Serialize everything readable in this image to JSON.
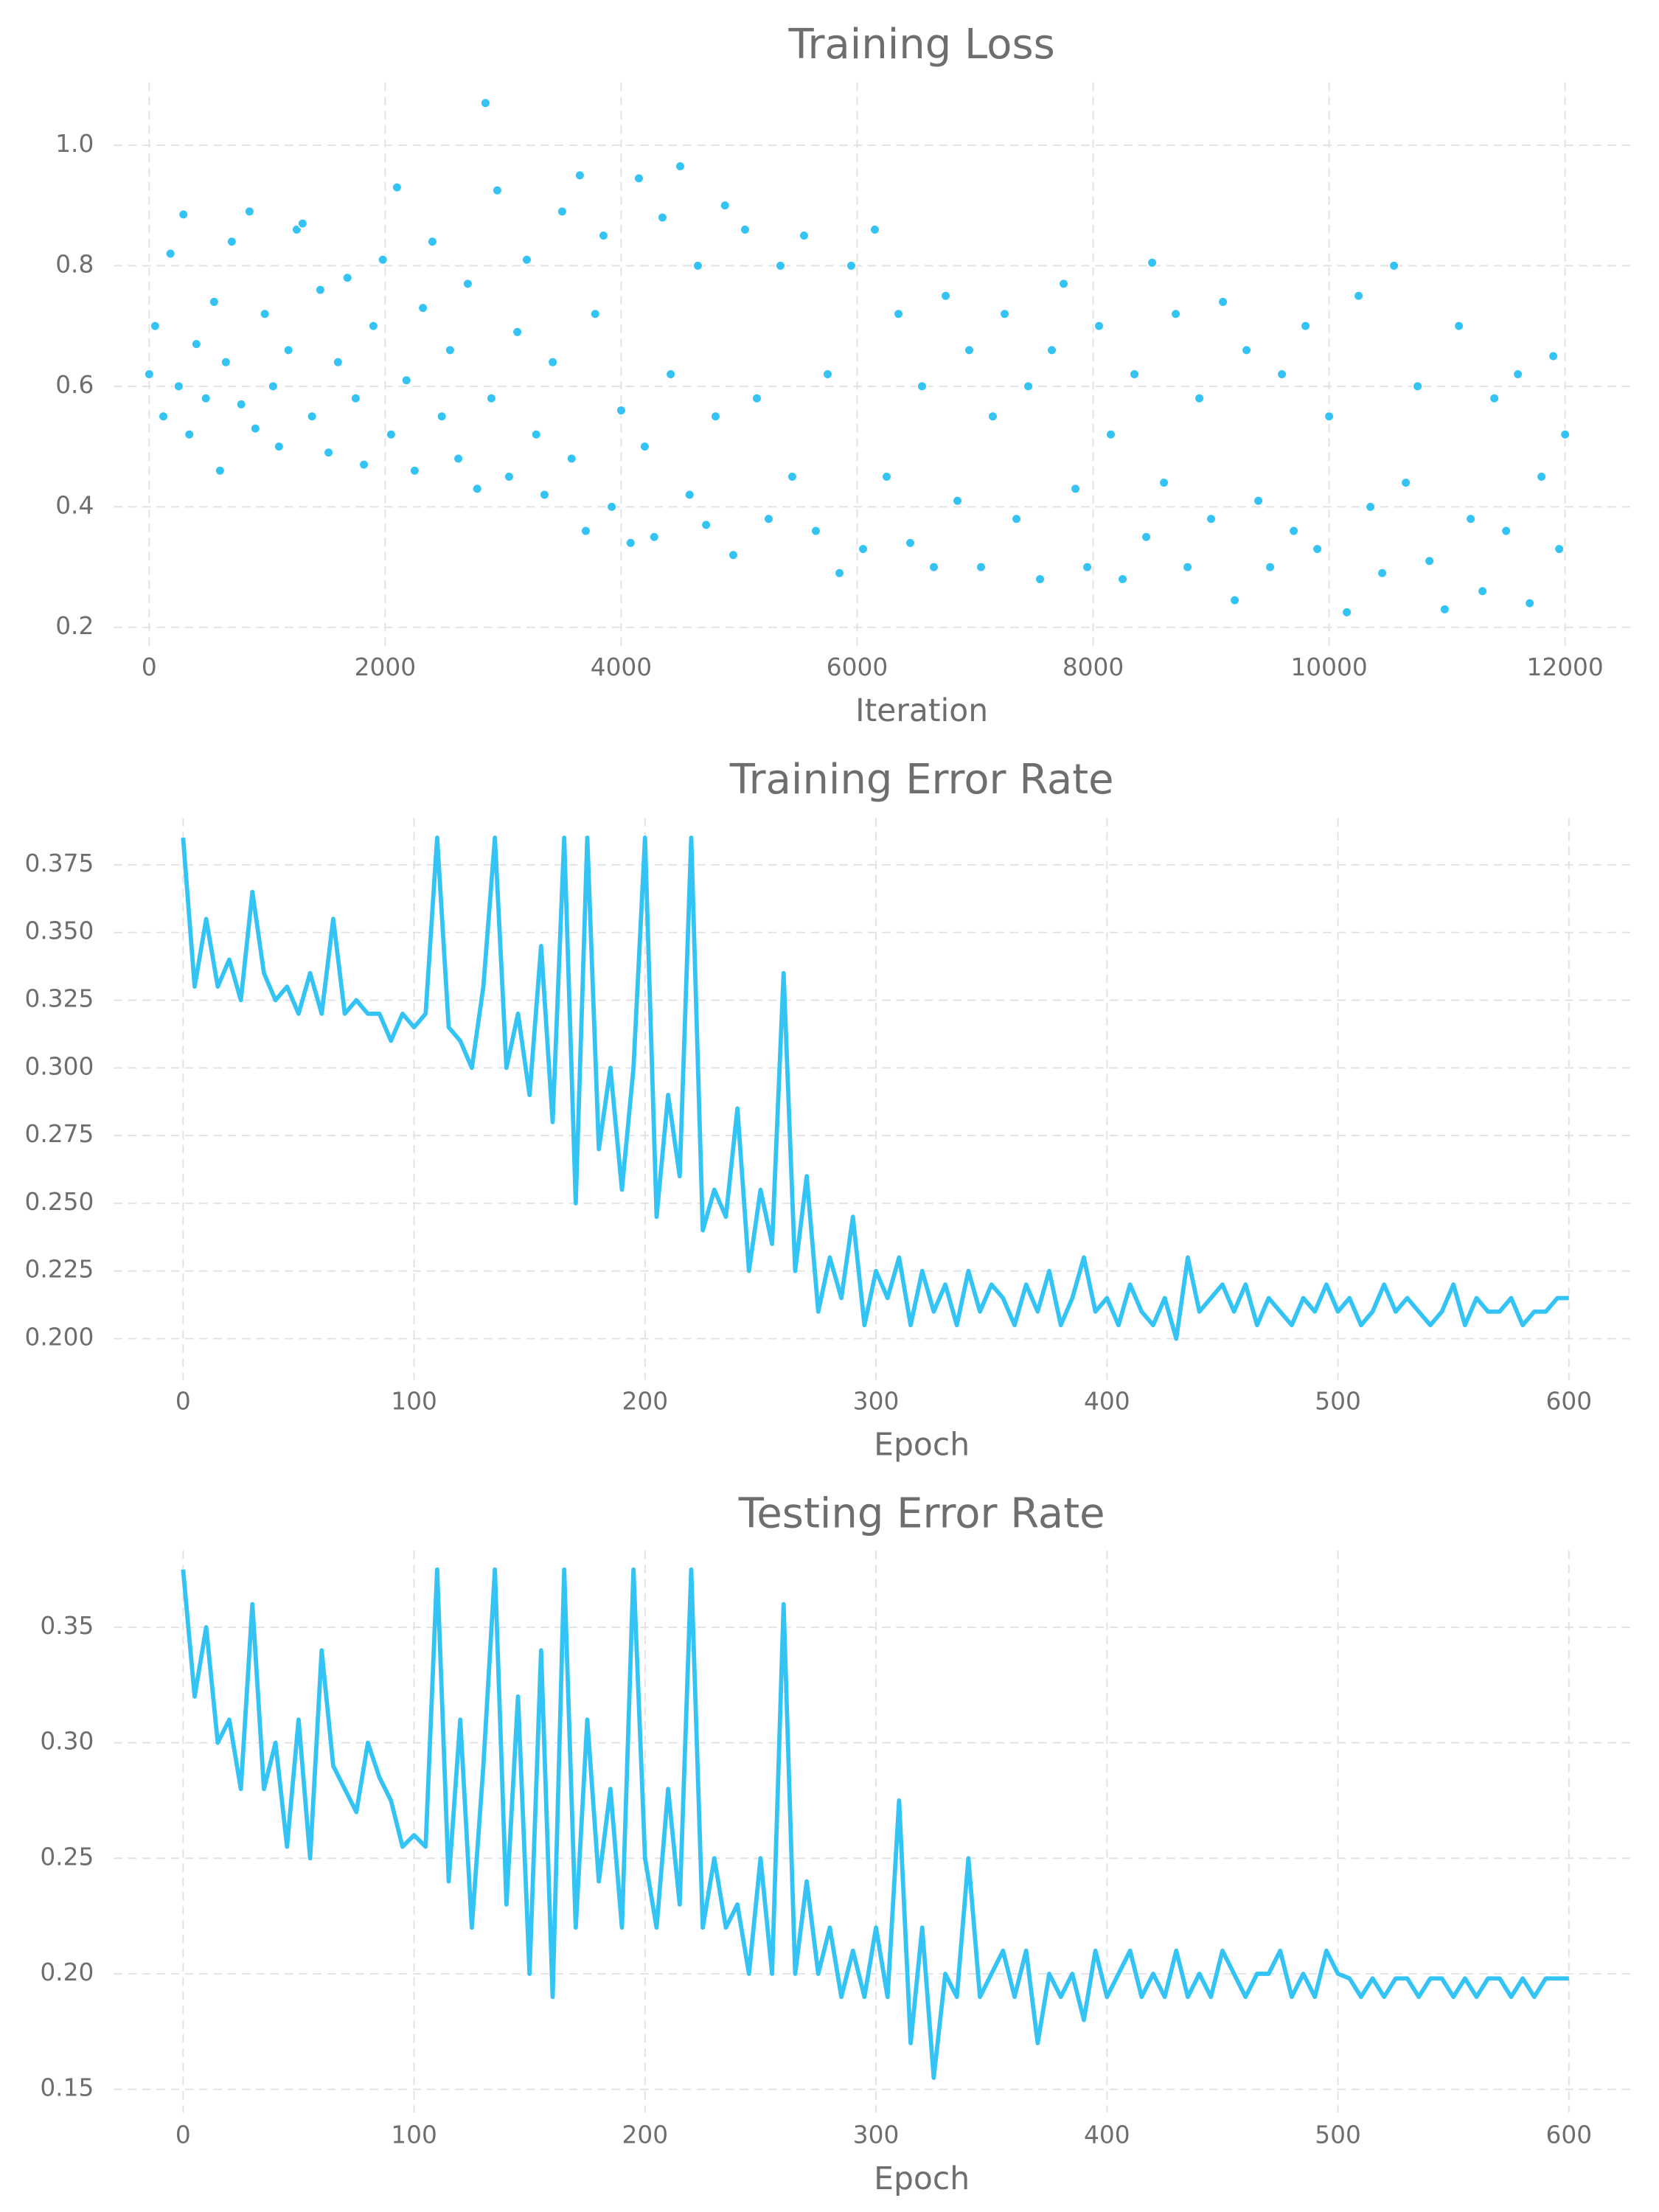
{
  "chart_data": [
    {
      "type": "scatter",
      "title": "Training Loss",
      "x_label": "Iteration",
      "color": "#33c4f5",
      "grid": true,
      "xlim": [
        -300,
        12600
      ],
      "ylim": [
        0.167,
        1.104
      ],
      "xticks": [
        0,
        2000,
        4000,
        6000,
        8000,
        10000,
        12000
      ],
      "yticks": [
        0.2,
        0.4,
        0.6,
        0.8,
        {
          "value": 1,
          "label": "1.0"
        }
      ],
      "x": [
        0,
        50,
        120,
        180,
        250,
        290,
        340,
        400,
        480,
        550,
        600,
        650,
        700,
        780,
        850,
        900,
        980,
        1050,
        1100,
        1180,
        1250,
        1300,
        1380,
        1450,
        1520,
        1600,
        1680,
        1750,
        1820,
        1900,
        1980,
        2050,
        2100,
        2180,
        2250,
        2320,
        2400,
        2480,
        2550,
        2620,
        2700,
        2780,
        2850,
        2900,
        2950,
        3050,
        3120,
        3200,
        3280,
        3350,
        3420,
        3500,
        3580,
        3650,
        3700,
        3780,
        3850,
        3920,
        4000,
        4080,
        4150,
        4200,
        4280,
        4350,
        4420,
        4500,
        4580,
        4650,
        4720,
        4800,
        4880,
        4950,
        5050,
        5150,
        5250,
        5350,
        5450,
        5550,
        5650,
        5750,
        5850,
        5950,
        6050,
        6150,
        6250,
        6350,
        6450,
        6550,
        6650,
        6750,
        6850,
        6950,
        7050,
        7150,
        7250,
        7350,
        7450,
        7550,
        7650,
        7750,
        7850,
        7950,
        8050,
        8150,
        8250,
        8350,
        8450,
        8500,
        8600,
        8700,
        8800,
        8900,
        9000,
        9100,
        9200,
        9300,
        9400,
        9500,
        9600,
        9700,
        9800,
        9900,
        10000,
        10150,
        10250,
        10350,
        10450,
        10550,
        10650,
        10750,
        10850,
        10980,
        11100,
        11200,
        11300,
        11400,
        11500,
        11600,
        11700,
        11800,
        11900,
        11950,
        12000
      ],
      "values": [
        0.62,
        0.7,
        0.55,
        0.82,
        0.6,
        0.885,
        0.52,
        0.67,
        0.58,
        0.74,
        0.46,
        0.64,
        0.84,
        0.57,
        0.89,
        0.53,
        0.72,
        0.6,
        0.5,
        0.66,
        0.86,
        0.87,
        0.55,
        0.76,
        0.49,
        0.64,
        0.78,
        0.58,
        0.47,
        0.7,
        0.81,
        0.52,
        0.93,
        0.61,
        0.46,
        0.73,
        0.84,
        0.55,
        0.66,
        0.48,
        0.77,
        0.43,
        1.07,
        0.58,
        0.925,
        0.45,
        0.69,
        0.81,
        0.52,
        0.42,
        0.64,
        0.89,
        0.48,
        0.95,
        0.36,
        0.72,
        0.85,
        0.4,
        0.56,
        0.34,
        0.945,
        0.5,
        0.35,
        0.88,
        0.62,
        0.965,
        0.42,
        0.8,
        0.37,
        0.55,
        0.9,
        0.32,
        0.86,
        0.58,
        0.38,
        0.8,
        0.45,
        0.85,
        0.36,
        0.62,
        0.29,
        0.8,
        0.33,
        0.86,
        0.45,
        0.72,
        0.34,
        0.6,
        0.3,
        0.75,
        0.41,
        0.66,
        0.3,
        0.55,
        0.72,
        0.38,
        0.6,
        0.28,
        0.66,
        0.77,
        0.43,
        0.3,
        0.7,
        0.52,
        0.28,
        0.62,
        0.35,
        0.805,
        0.44,
        0.72,
        0.3,
        0.58,
        0.38,
        0.74,
        0.245,
        0.66,
        0.41,
        0.3,
        0.62,
        0.36,
        0.7,
        0.33,
        0.55,
        0.225,
        0.75,
        0.4,
        0.29,
        0.8,
        0.44,
        0.6,
        0.31,
        0.23,
        0.7,
        0.38,
        0.26,
        0.58,
        0.36,
        0.62,
        0.24,
        0.45,
        0.65,
        0.33,
        0.52
      ]
    },
    {
      "type": "line",
      "title": "Training Error Rate",
      "x_label": "Epoch",
      "color": "#33c4f5",
      "grid": true,
      "xlim": [
        -30,
        629
      ],
      "ylim": [
        0.1848,
        0.3923
      ],
      "xticks": [
        0,
        100,
        200,
        300,
        400,
        500,
        600
      ],
      "yticks": [
        {
          "value": 0.2,
          "label": "0.200"
        },
        0.225,
        {
          "value": 0.25,
          "label": "0.250"
        },
        0.275,
        {
          "value": 0.3,
          "label": "0.300"
        },
        0.325,
        {
          "value": 0.35,
          "label": "0.350"
        },
        0.375
      ],
      "x": [
        0,
        5,
        10,
        15,
        20,
        25,
        30,
        35,
        40,
        45,
        50,
        55,
        60,
        65,
        70,
        75,
        80,
        85,
        90,
        95,
        100,
        105,
        110,
        115,
        120,
        125,
        130,
        135,
        140,
        145,
        150,
        155,
        160,
        165,
        170,
        175,
        180,
        185,
        190,
        195,
        200,
        205,
        210,
        215,
        220,
        225,
        230,
        235,
        240,
        245,
        250,
        255,
        260,
        265,
        270,
        275,
        280,
        285,
        290,
        295,
        300,
        305,
        310,
        315,
        320,
        325,
        330,
        335,
        340,
        345,
        350,
        355,
        360,
        365,
        370,
        375,
        380,
        385,
        390,
        395,
        400,
        405,
        410,
        415,
        420,
        425,
        430,
        435,
        440,
        445,
        450,
        455,
        460,
        465,
        470,
        475,
        480,
        485,
        490,
        495,
        500,
        505,
        510,
        515,
        520,
        525,
        530,
        535,
        540,
        545,
        550,
        555,
        560,
        565,
        570,
        575,
        580,
        585,
        590,
        595,
        600
      ],
      "values": [
        0.385,
        0.33,
        0.355,
        0.33,
        0.34,
        0.325,
        0.365,
        0.335,
        0.325,
        0.33,
        0.32,
        0.335,
        0.32,
        0.355,
        0.32,
        0.325,
        0.32,
        0.32,
        0.31,
        0.32,
        0.315,
        0.32,
        0.385,
        0.315,
        0.31,
        0.3,
        0.33,
        0.385,
        0.3,
        0.32,
        0.29,
        0.345,
        0.28,
        0.385,
        0.25,
        0.385,
        0.27,
        0.3,
        0.255,
        0.3,
        0.385,
        0.245,
        0.29,
        0.26,
        0.385,
        0.24,
        0.255,
        0.245,
        0.285,
        0.225,
        0.255,
        0.235,
        0.335,
        0.225,
        0.26,
        0.21,
        0.23,
        0.215,
        0.245,
        0.205,
        0.225,
        0.215,
        0.23,
        0.205,
        0.225,
        0.21,
        0.22,
        0.205,
        0.225,
        0.21,
        0.22,
        0.215,
        0.205,
        0.22,
        0.21,
        0.225,
        0.205,
        0.215,
        0.23,
        0.21,
        0.215,
        0.205,
        0.22,
        0.21,
        0.205,
        0.215,
        0.2,
        0.23,
        0.21,
        0.215,
        0.22,
        0.21,
        0.22,
        0.205,
        0.215,
        0.21,
        0.205,
        0.215,
        0.21,
        0.22,
        0.21,
        0.215,
        0.205,
        0.21,
        0.22,
        0.21,
        0.215,
        0.21,
        0.205,
        0.21,
        0.22,
        0.205,
        0.215,
        0.21,
        0.21,
        0.215,
        0.205,
        0.21,
        0.21,
        0.215,
        0.215
      ]
    },
    {
      "type": "line",
      "title": "Testing Error Rate",
      "x_label": "Epoch",
      "color": "#33c4f5",
      "grid": true,
      "xlim": [
        -30,
        629
      ],
      "ylim": [
        0.14,
        0.3832
      ],
      "xticks": [
        0,
        100,
        200,
        300,
        400,
        500,
        600
      ],
      "yticks": [
        0.15,
        {
          "value": 0.2,
          "label": "0.20"
        },
        0.25,
        {
          "value": 0.3,
          "label": "0.30"
        },
        0.35
      ],
      "x": [
        0,
        5,
        10,
        15,
        20,
        25,
        30,
        35,
        40,
        45,
        50,
        55,
        60,
        65,
        70,
        75,
        80,
        85,
        90,
        95,
        100,
        105,
        110,
        115,
        120,
        125,
        130,
        135,
        140,
        145,
        150,
        155,
        160,
        165,
        170,
        175,
        180,
        185,
        190,
        195,
        200,
        205,
        210,
        215,
        220,
        225,
        230,
        235,
        240,
        245,
        250,
        255,
        260,
        265,
        270,
        275,
        280,
        285,
        290,
        295,
        300,
        305,
        310,
        315,
        320,
        325,
        330,
        335,
        340,
        345,
        350,
        355,
        360,
        365,
        370,
        375,
        380,
        385,
        390,
        395,
        400,
        405,
        410,
        415,
        420,
        425,
        430,
        435,
        440,
        445,
        450,
        455,
        460,
        465,
        470,
        475,
        480,
        485,
        490,
        495,
        500,
        505,
        510,
        515,
        520,
        525,
        530,
        535,
        540,
        545,
        550,
        555,
        560,
        565,
        570,
        575,
        580,
        585,
        590,
        595,
        600
      ],
      "values": [
        0.375,
        0.32,
        0.35,
        0.3,
        0.31,
        0.28,
        0.36,
        0.28,
        0.3,
        0.255,
        0.31,
        0.25,
        0.34,
        0.29,
        0.28,
        0.27,
        0.3,
        0.285,
        0.275,
        0.255,
        0.26,
        0.255,
        0.375,
        0.24,
        0.31,
        0.22,
        0.29,
        0.375,
        0.23,
        0.32,
        0.2,
        0.34,
        0.19,
        0.375,
        0.22,
        0.31,
        0.24,
        0.28,
        0.22,
        0.375,
        0.25,
        0.22,
        0.28,
        0.23,
        0.375,
        0.22,
        0.25,
        0.22,
        0.23,
        0.2,
        0.25,
        0.2,
        0.36,
        0.2,
        0.24,
        0.2,
        0.22,
        0.19,
        0.21,
        0.19,
        0.22,
        0.19,
        0.275,
        0.17,
        0.22,
        0.155,
        0.2,
        0.19,
        0.25,
        0.19,
        0.2,
        0.21,
        0.19,
        0.21,
        0.17,
        0.2,
        0.19,
        0.2,
        0.18,
        0.21,
        0.19,
        0.2,
        0.21,
        0.19,
        0.2,
        0.19,
        0.21,
        0.19,
        0.2,
        0.19,
        0.21,
        0.2,
        0.19,
        0.2,
        0.2,
        0.21,
        0.19,
        0.2,
        0.19,
        0.21,
        0.2,
        0.198,
        0.19,
        0.198,
        0.19,
        0.198,
        0.198,
        0.19,
        0.198,
        0.198,
        0.19,
        0.198,
        0.19,
        0.198,
        0.198,
        0.19,
        0.198,
        0.19,
        0.198,
        0.198,
        0.198
      ]
    }
  ]
}
